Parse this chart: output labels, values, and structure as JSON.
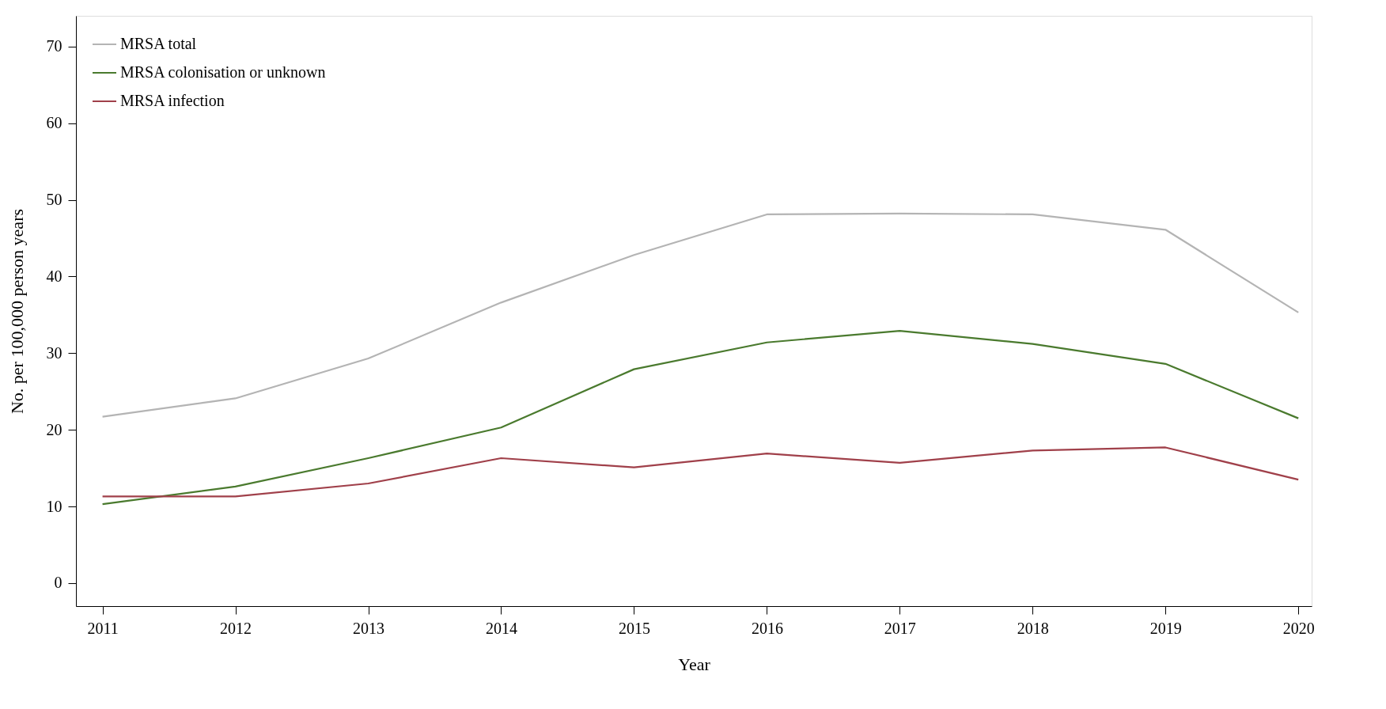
{
  "chart_data": {
    "type": "line",
    "xlabel": "Year",
    "ylabel": "No. per 100,000 person years",
    "x": [
      2011,
      2012,
      2013,
      2014,
      2015,
      2016,
      2017,
      2018,
      2019,
      2020
    ],
    "series": [
      {
        "name": "MRSA total",
        "color": "#b4b4b4",
        "values": [
          21.7,
          24.1,
          29.3,
          36.6,
          42.8,
          48.1,
          48.2,
          48.1,
          46.1,
          35.3
        ]
      },
      {
        "name": "MRSA colonisation or unknown",
        "color": "#4a7a2e",
        "values": [
          10.3,
          12.6,
          16.3,
          20.3,
          27.9,
          31.4,
          32.9,
          31.2,
          28.6,
          21.5
        ]
      },
      {
        "name": "MRSA infection",
        "color": "#a0404a",
        "values": [
          11.3,
          11.3,
          13.0,
          16.3,
          15.1,
          16.9,
          15.7,
          17.3,
          17.7,
          13.5
        ]
      }
    ],
    "xlim": [
      2010.8,
      2020.1
    ],
    "xticks": [
      2011,
      2012,
      2013,
      2014,
      2015,
      2016,
      2017,
      2018,
      2019,
      2020
    ],
    "ylim": [
      -3,
      74
    ],
    "yticks": [
      0,
      10,
      20,
      30,
      40,
      50,
      60,
      70
    ],
    "grid": false,
    "legend": "top left",
    "marker": "none",
    "line_style": "solid"
  }
}
